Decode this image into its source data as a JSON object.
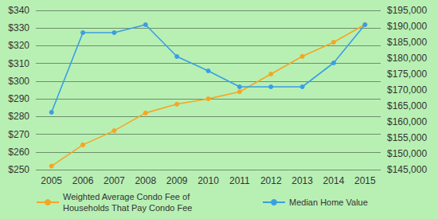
{
  "chart_data": {
    "type": "line",
    "categories": [
      "2005",
      "2006",
      "2007",
      "2008",
      "2009",
      "2010",
      "2011",
      "2012",
      "2013",
      "2014",
      "2015"
    ],
    "series": [
      {
        "name": "Weighted Average Condo Fee of Households That Pay Condo Fee",
        "color": "#f5a623",
        "marker": "circle",
        "values": [
          252,
          264,
          272,
          282,
          287,
          290,
          294,
          304,
          314,
          322,
          332
        ]
      },
      {
        "name": "Median Home Value",
        "color": "#3a9ee4",
        "marker": "circle",
        "axis": "y2",
        "values": [
          163000,
          188000,
          188000,
          190500,
          180500,
          176000,
          171000,
          171000,
          171000,
          178500,
          190500
        ]
      }
    ],
    "ylim": [
      250,
      340
    ],
    "yticks": [
      {
        "value": 250,
        "label": "$250"
      },
      {
        "value": 260,
        "label": "$260"
      },
      {
        "value": 270,
        "label": "$270"
      },
      {
        "value": 280,
        "label": "$280"
      },
      {
        "value": 290,
        "label": "$290"
      },
      {
        "value": 300,
        "label": "$300"
      },
      {
        "value": 310,
        "label": "$310"
      },
      {
        "value": 320,
        "label": "$320"
      },
      {
        "value": 330,
        "label": "$330"
      },
      {
        "value": 340,
        "label": "$340"
      }
    ],
    "y2lim": [
      145000,
      195000
    ],
    "y2ticks": [
      {
        "value": 145000,
        "label": "$145,000"
      },
      {
        "value": 150000,
        "label": "$150,000"
      },
      {
        "value": 155000,
        "label": "$155,000"
      },
      {
        "value": 160000,
        "label": "$160,000"
      },
      {
        "value": 165000,
        "label": "$165,000"
      },
      {
        "value": 170000,
        "label": "$170,000"
      },
      {
        "value": 175000,
        "label": "$175,000"
      },
      {
        "value": 180000,
        "label": "$180,000"
      },
      {
        "value": 185000,
        "label": "$185,000"
      },
      {
        "value": 190000,
        "label": "$190,000"
      },
      {
        "value": 195000,
        "label": "$195,000"
      }
    ],
    "grid": true,
    "legend": "bottom"
  }
}
